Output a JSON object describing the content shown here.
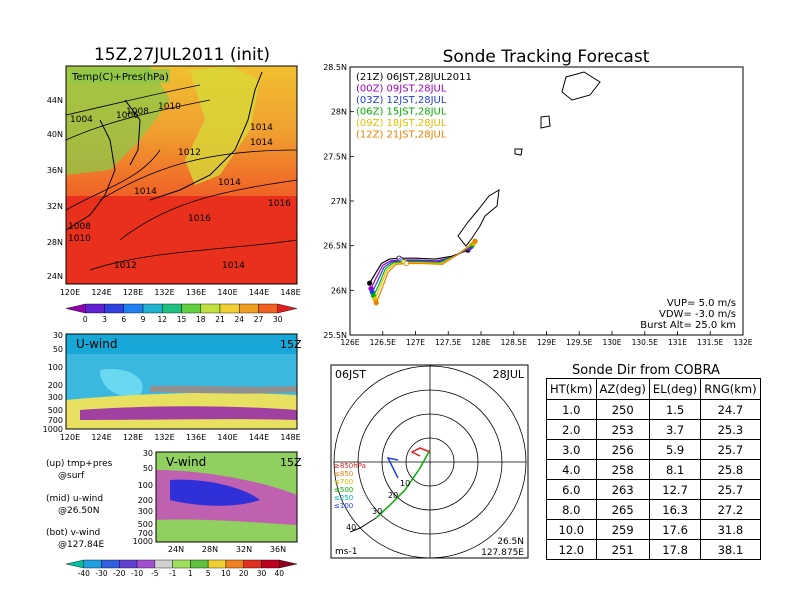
{
  "left": {
    "map_title": "15Z,27JUL2011 (init)",
    "map_label": "Temp(C)+Pres(hPa)",
    "lat_ticks": [
      "44N",
      "40N",
      "36N",
      "32N",
      "28N",
      "24N"
    ],
    "lon_ticks": [
      "120E",
      "124E",
      "128E",
      "132E",
      "136E",
      "140E",
      "144E",
      "148E"
    ],
    "isobars": [
      "1004",
      "1006",
      "1008",
      "1010",
      "1012",
      "1014",
      "1014",
      "1014",
      "1014",
      "1016",
      "1016",
      "1012",
      "1014",
      "1008",
      "1010"
    ],
    "temp_colorbar": [
      "0",
      "3",
      "6",
      "9",
      "12",
      "15",
      "18",
      "21",
      "24",
      "27",
      "30"
    ],
    "u_panel": {
      "title": "U-wind",
      "time": "15Z",
      "levels": [
        "30",
        "50",
        "100",
        "200",
        "300",
        "500",
        "700",
        "1000"
      ]
    },
    "v_panel": {
      "title": "V-wind",
      "time": "15Z",
      "levels": [
        "30",
        "50",
        "100",
        "200",
        "300",
        "500",
        "700",
        "1000"
      ],
      "lat_ticks": [
        "24N",
        "28N",
        "32N",
        "36N"
      ]
    },
    "legend_lines": [
      "(up) tmp+pres",
      "@surf",
      "(mid) u-wind",
      "@26.50N",
      "(bot) v-wind",
      "@127.84E"
    ],
    "wind_colorbar": [
      "-40",
      "-30",
      "-20",
      "-10",
      "-5",
      "-1",
      "1",
      "5",
      "10",
      "20",
      "30",
      "40"
    ]
  },
  "track": {
    "title": "Sonde Tracking Forecast",
    "legend": [
      {
        "label": "(21Z)  06JST,28JUL2011",
        "color": "#000000"
      },
      {
        "label": "(00Z)  09JST,28JUL",
        "color": "#a000c8"
      },
      {
        "label": "(03Z)  12JST,28JUL",
        "color": "#2040e0"
      },
      {
        "label": "(06Z)  15JST,28JUL",
        "color": "#00b000"
      },
      {
        "label": "(09Z)  18JST,28JUL",
        "color": "#e0c000"
      },
      {
        "label": "(12Z)  21JST,28JUL",
        "color": "#f08000"
      }
    ],
    "info": [
      "VUP=  5.0  m/s",
      "VDW= -3.0  m/s",
      "Burst Alt= 25.0  km"
    ]
  },
  "polar": {
    "time_left": "06JST",
    "time_right": "28JUL",
    "units": "ms-1",
    "loc_lat": "26.5N",
    "loc_lon": "127.875E",
    "pressure_labels": [
      "≥850hPa",
      "≤850",
      "≤700",
      "≤500",
      "≤250",
      "≤100"
    ],
    "ring_labels": [
      "10",
      "20",
      "30",
      "40"
    ]
  },
  "table": {
    "title": "Sonde Dir from COBRA",
    "headers": [
      "HT(km)",
      "AZ(deg)",
      "EL(deg)",
      "RNG(km)"
    ],
    "rows": [
      [
        "1.0",
        "250",
        "1.5",
        "24.7"
      ],
      [
        "2.0",
        "253",
        "3.7",
        "25.3"
      ],
      [
        "3.0",
        "256",
        "5.9",
        "25.7"
      ],
      [
        "4.0",
        "258",
        "8.1",
        "25.8"
      ],
      [
        "6.0",
        "263",
        "12.7",
        "25.7"
      ],
      [
        "8.0",
        "265",
        "16.3",
        "27.2"
      ],
      [
        "10.0",
        "259",
        "17.6",
        "31.8"
      ],
      [
        "12.0",
        "251",
        "17.8",
        "38.1"
      ]
    ]
  },
  "chart_data": {
    "type": "line",
    "title": "Sonde Tracking Forecast",
    "xlabel": "",
    "ylabel": "",
    "xlim": [
      126,
      132
    ],
    "ylim": [
      25.5,
      28.5
    ],
    "x_ticks": [
      "126E",
      "126.5E",
      "127E",
      "127.5E",
      "128E",
      "128.5E",
      "129E",
      "129.5E",
      "130E",
      "130.5E",
      "131E",
      "131.5E",
      "132E"
    ],
    "y_ticks": [
      "25.5N",
      "26N",
      "26.5N",
      "27N",
      "27.5N",
      "28N",
      "28.5N"
    ],
    "series": [
      {
        "name": "(21Z)  06JST,28JUL2011",
        "color": "#000000",
        "points": [
          [
            126.3,
            26.08
          ],
          [
            126.38,
            26.18
          ],
          [
            126.48,
            26.3
          ],
          [
            126.6,
            26.35
          ],
          [
            126.75,
            26.36
          ],
          [
            127.0,
            26.36
          ],
          [
            127.3,
            26.35
          ],
          [
            127.55,
            26.38
          ],
          [
            127.8,
            26.45
          ]
        ]
      },
      {
        "name": "(00Z)  09JST,28JUL",
        "color": "#a000c8",
        "points": [
          [
            126.32,
            26.02
          ],
          [
            126.4,
            26.14
          ],
          [
            126.5,
            26.28
          ],
          [
            126.62,
            26.33
          ],
          [
            126.78,
            26.34
          ],
          [
            127.02,
            26.34
          ],
          [
            127.32,
            26.33
          ],
          [
            127.57,
            26.37
          ],
          [
            127.82,
            26.47
          ]
        ]
      },
      {
        "name": "(03Z)  12JST,28JUL",
        "color": "#2040e0",
        "points": [
          [
            126.34,
            25.98
          ],
          [
            126.42,
            26.1
          ],
          [
            126.52,
            26.26
          ],
          [
            126.64,
            26.32
          ],
          [
            126.8,
            26.33
          ],
          [
            127.05,
            26.33
          ],
          [
            127.35,
            26.32
          ],
          [
            127.6,
            26.38
          ],
          [
            127.85,
            26.49
          ]
        ]
      },
      {
        "name": "(06Z)  15JST,28JUL",
        "color": "#00b000",
        "points": [
          [
            126.36,
            25.94
          ],
          [
            126.44,
            26.06
          ],
          [
            126.54,
            26.24
          ],
          [
            126.66,
            26.31
          ],
          [
            126.82,
            26.32
          ],
          [
            127.07,
            26.32
          ],
          [
            127.37,
            26.31
          ],
          [
            127.62,
            26.39
          ],
          [
            127.87,
            26.51
          ]
        ]
      },
      {
        "name": "(09Z)  18JST,28JUL",
        "color": "#e0c000",
        "points": [
          [
            126.38,
            25.9
          ],
          [
            126.46,
            26.04
          ],
          [
            126.56,
            26.22
          ],
          [
            126.68,
            26.3
          ],
          [
            126.84,
            26.31
          ],
          [
            127.09,
            26.31
          ],
          [
            127.39,
            26.3
          ],
          [
            127.64,
            26.4
          ],
          [
            127.89,
            26.53
          ]
        ]
      },
      {
        "name": "(12Z)  21JST,28JUL",
        "color": "#f08000",
        "points": [
          [
            126.4,
            25.86
          ],
          [
            126.48,
            26.0
          ],
          [
            126.58,
            26.2
          ],
          [
            126.7,
            26.29
          ],
          [
            126.86,
            26.3
          ],
          [
            127.11,
            26.3
          ],
          [
            127.41,
            26.29
          ],
          [
            127.66,
            26.41
          ],
          [
            127.91,
            26.55
          ]
        ]
      }
    ]
  }
}
